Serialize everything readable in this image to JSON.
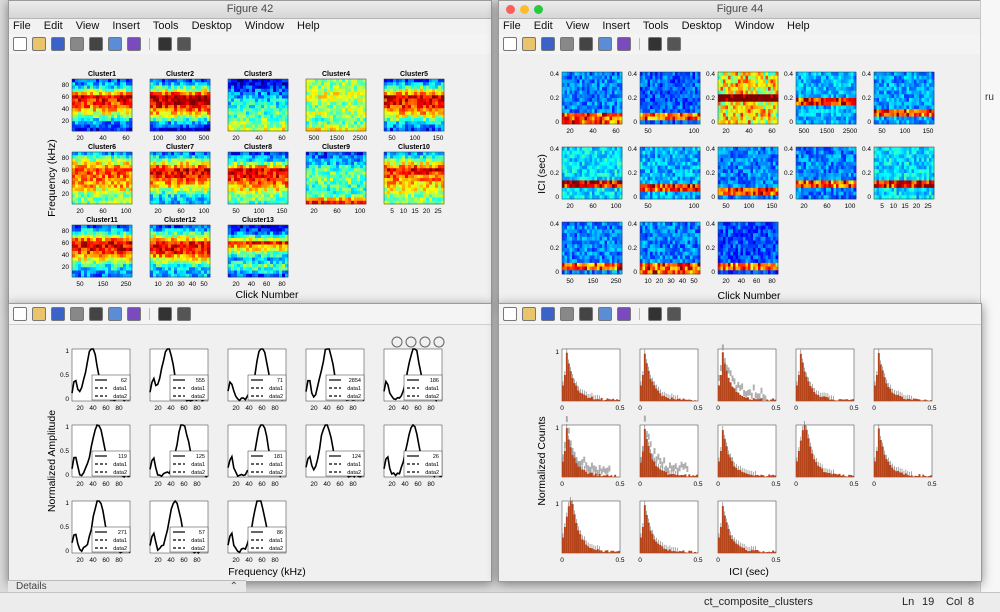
{
  "menu": [
    "File",
    "Edit",
    "View",
    "Insert",
    "Tools",
    "Desktop",
    "Window",
    "Help"
  ],
  "fig42": {
    "title": "Figure 42",
    "panel_titles": [
      "Cluster1",
      "Cluster2",
      "Cluster3",
      "Cluster4",
      "Cluster5",
      "Cluster6",
      "Cluster7",
      "Cluster8",
      "Cluster9",
      "Cluster10",
      "Cluster11",
      "Cluster12",
      "Cluster13"
    ],
    "xlabel": "Click Number",
    "ylabel": "Frequency (kHz)",
    "yticks": [
      "80",
      "60",
      "40",
      "20"
    ],
    "xticks": [
      [
        "20",
        "40",
        "60"
      ],
      [
        "100",
        "300",
        "500"
      ],
      [
        "20",
        "40",
        "60"
      ],
      [
        "500",
        "1500",
        "2500"
      ],
      [
        "50",
        "100",
        "150"
      ],
      [
        "20",
        "60",
        "100"
      ],
      [
        "20",
        "60",
        "100"
      ],
      [
        "50",
        "100",
        "150"
      ],
      [
        "20",
        "60",
        "100"
      ],
      [
        "5",
        "10",
        "15",
        "20",
        "25"
      ],
      [
        "50",
        "150",
        "250"
      ],
      [
        "10",
        "20",
        "30",
        "40",
        "50"
      ],
      [
        "20",
        "40",
        "60",
        "80"
      ]
    ]
  },
  "fig44": {
    "title": "Figure 44",
    "xlabel": "Click Number",
    "ylabel": "ICI (sec)",
    "yticks": [
      "0.4",
      "0.2",
      "0"
    ],
    "xticks": [
      [
        "20",
        "40",
        "60"
      ],
      [
        "50",
        "100"
      ],
      [
        "20",
        "40",
        "60"
      ],
      [
        "500",
        "1500",
        "2500"
      ],
      [
        "50",
        "100",
        "150"
      ],
      [
        "20",
        "60",
        "100"
      ],
      [
        "50",
        "100"
      ],
      [
        "50",
        "100",
        "150"
      ],
      [
        "20",
        "60",
        "100"
      ],
      [
        "5",
        "10",
        "15",
        "20",
        "25"
      ],
      [
        "50",
        "150",
        "250"
      ],
      [
        "10",
        "20",
        "30",
        "40",
        "50"
      ],
      [
        "20",
        "40",
        "60",
        "80"
      ]
    ]
  },
  "fig_amp": {
    "xlabel": "Frequency (kHz)",
    "ylabel": "Normalized Amplitude",
    "yticks": [
      "1",
      "0.5",
      "0"
    ],
    "xticks": [
      "20",
      "40",
      "60",
      "80"
    ],
    "legend_counts": [
      "62",
      "555",
      "71",
      "2854",
      "186",
      "119",
      "125",
      "181",
      "124",
      "26",
      "271",
      "57",
      "86"
    ],
    "legend_data": [
      "data1",
      "data2"
    ],
    "details": "Details"
  },
  "fig_counts": {
    "xlabel": "ICI (sec)",
    "ylabel": "Normalized Counts",
    "xticks": [
      "0",
      "0.5"
    ],
    "yticks": [
      "1"
    ]
  },
  "editor": {
    "tabs_right": [
      "ru"
    ],
    "status_file": "ct_composite_clusters",
    "status_ln": "Ln",
    "status_ln_val": "19",
    "status_col": "Col",
    "status_col_val": "8"
  },
  "colors": {
    "bar": "#b5431a",
    "hot": "#d01010",
    "cold": "#0a1d8c"
  }
}
